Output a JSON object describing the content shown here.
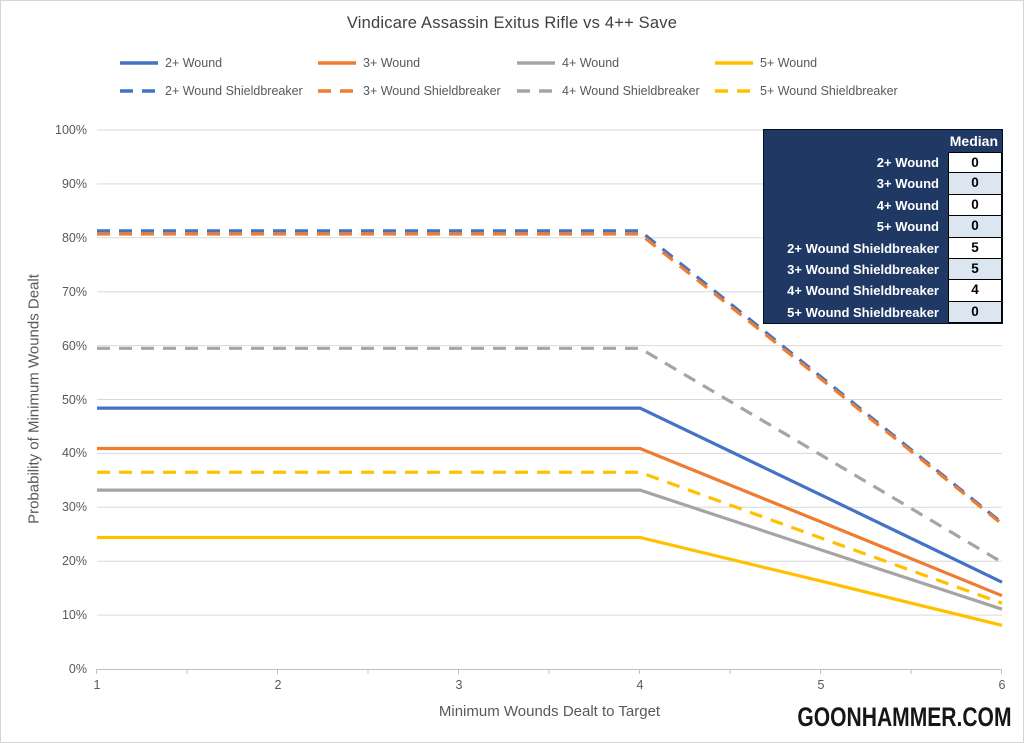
{
  "title": "Vindicare Assassin Exitus Rifle vs 4++ Save",
  "watermark": "GOONHAMMER.COM",
  "axes": {
    "x_label": "Minimum Wounds Dealt to Target",
    "y_label": "Probability of Minimum Wounds Dealt",
    "x_ticks": [
      "1",
      "2",
      "3",
      "4",
      "5",
      "6"
    ],
    "y_ticks": [
      "0%",
      "10%",
      "20%",
      "30%",
      "40%",
      "50%",
      "60%",
      "70%",
      "80%",
      "90%",
      "100%"
    ]
  },
  "colors": {
    "blue": "#4472C4",
    "orange": "#ED7D31",
    "gray": "#A5A5A5",
    "yellow": "#FFC000",
    "grid": "#D9D9D9",
    "axis_line": "#BFBFBF",
    "tick_text": "#595959",
    "title_text": "#404040",
    "table_navy": "#1F3864",
    "table_alt_row": "#DCE6F1"
  },
  "chart_data": {
    "type": "line",
    "title": "Vindicare Assassin Exitus Rifle vs 4++ Save",
    "xlabel": "Minimum Wounds Dealt to Target",
    "ylabel": "Probability of Minimum Wounds Dealt",
    "x": [
      1,
      2,
      3,
      4,
      5,
      6
    ],
    "ylim": [
      0,
      100
    ],
    "y_unit": "percent",
    "grid": true,
    "legend_position": "top",
    "series": [
      {
        "name": "2+ Wound",
        "color": "#4472C4",
        "dash": false,
        "values": [
          48.4,
          48.4,
          48.4,
          48.4,
          32.3,
          16.1
        ]
      },
      {
        "name": "3+ Wound",
        "color": "#ED7D31",
        "dash": false,
        "values": [
          40.9,
          40.9,
          40.9,
          40.9,
          27.3,
          13.6
        ]
      },
      {
        "name": "4+ Wound",
        "color": "#A5A5A5",
        "dash": false,
        "values": [
          33.2,
          33.2,
          33.2,
          33.2,
          22.1,
          11.1
        ]
      },
      {
        "name": "5+ Wound",
        "color": "#FFC000",
        "dash": false,
        "values": [
          24.4,
          24.4,
          24.4,
          24.4,
          16.3,
          8.1
        ]
      },
      {
        "name": "2+ Wound Shieldbreaker",
        "color": "#4472C4",
        "dash": true,
        "values": [
          81.3,
          81.3,
          81.3,
          81.3,
          54.2,
          27.1
        ]
      },
      {
        "name": "3+ Wound Shieldbreaker",
        "color": "#ED7D31",
        "dash": true,
        "values": [
          80.7,
          80.7,
          80.7,
          80.7,
          53.8,
          26.9
        ]
      },
      {
        "name": "4+ Wound Shieldbreaker",
        "color": "#A5A5A5",
        "dash": true,
        "values": [
          59.5,
          59.5,
          59.5,
          59.5,
          39.7,
          19.8
        ]
      },
      {
        "name": "5+ Wound Shieldbreaker",
        "color": "#FFC000",
        "dash": true,
        "values": [
          36.5,
          36.5,
          36.5,
          36.5,
          24.3,
          12.2
        ]
      }
    ]
  },
  "median_table": {
    "header": "Median",
    "rows": [
      {
        "label": "2+ Wound",
        "value": "0"
      },
      {
        "label": "3+ Wound",
        "value": "0"
      },
      {
        "label": "4+ Wound",
        "value": "0"
      },
      {
        "label": "5+ Wound",
        "value": "0"
      },
      {
        "label": "2+ Wound Shieldbreaker",
        "value": "5"
      },
      {
        "label": "3+ Wound Shieldbreaker",
        "value": "5"
      },
      {
        "label": "4+ Wound Shieldbreaker",
        "value": "4"
      },
      {
        "label": "5+ Wound Shieldbreaker",
        "value": "0"
      }
    ]
  }
}
